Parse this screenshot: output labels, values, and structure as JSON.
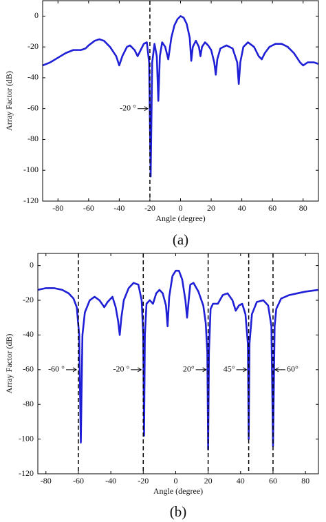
{
  "chart_data": [
    {
      "type": "line",
      "xlabel": "Angle (degree)",
      "ylabel": "Array Factor (dB)",
      "caption": "(a)",
      "xlim": [
        -90,
        90
      ],
      "ylim": [
        -120,
        10
      ],
      "xticks": [
        -80,
        -60,
        -40,
        -20,
        0,
        20,
        40,
        60,
        80
      ],
      "yticks": [
        0,
        -20,
        -40,
        -60,
        -80,
        -100,
        -120
      ],
      "color": "#1f1fd6",
      "x": [
        -90,
        -85,
        -80,
        -75,
        -70,
        -65,
        -62,
        -60,
        -56,
        -53,
        -50,
        -46,
        -42,
        -40,
        -38,
        -35,
        -33,
        -30,
        -28,
        -26,
        -24,
        -22,
        -20.5,
        -19.5,
        -18.5,
        -17,
        -15.5,
        -14.5,
        -13.5,
        -12,
        -10,
        -8,
        -6,
        -4,
        -2,
        0,
        2,
        4,
        6,
        7,
        8,
        10,
        12,
        13,
        14,
        16,
        18,
        20,
        22,
        23,
        24,
        26,
        30,
        34,
        37,
        38,
        39,
        41,
        44,
        48,
        51,
        53,
        55,
        58,
        62,
        66,
        70,
        74,
        78,
        80,
        83,
        87,
        90
      ],
      "values": [
        -32,
        -30,
        -27,
        -24,
        -22,
        -22,
        -21,
        -19,
        -16,
        -15,
        -16,
        -20,
        -26,
        -32,
        -26,
        -20,
        -19,
        -22,
        -26,
        -22,
        -18,
        -17,
        -30,
        -104,
        -30,
        -18,
        -26,
        -55,
        -26,
        -17,
        -20,
        -28,
        -14,
        -6,
        -2,
        0,
        -1,
        -5,
        -14,
        -29,
        -20,
        -16,
        -20,
        -26,
        -20,
        -17,
        -19,
        -22,
        -30,
        -38,
        -28,
        -21,
        -19,
        -21,
        -30,
        -44,
        -30,
        -20,
        -17,
        -20,
        -26,
        -28,
        -24,
        -20,
        -18,
        -18,
        -20,
        -24,
        -30,
        -32,
        -30,
        -30,
        -31
      ],
      "annotations": [
        {
          "text": "-20 °",
          "x": -20,
          "side": "left"
        }
      ]
    },
    {
      "type": "line",
      "xlabel": "Angle (degree)",
      "ylabel": "Array Factor (dB)",
      "caption": "(b)",
      "xlim": [
        -85,
        88
      ],
      "ylim": [
        -120,
        7
      ],
      "xticks": [
        -80,
        -60,
        -40,
        -20,
        0,
        20,
        40,
        60,
        80
      ],
      "yticks": [
        0,
        -20,
        -40,
        -60,
        -80,
        -100,
        -120
      ],
      "color": "#1f1fd6",
      "x": [
        -85,
        -80,
        -75,
        -70,
        -66,
        -63,
        -61,
        -59.5,
        -58.5,
        -57.5,
        -56,
        -53,
        -50,
        -47,
        -44,
        -42,
        -39,
        -37,
        -35.5,
        -34.5,
        -33.5,
        -32,
        -29,
        -26,
        -23,
        -21,
        -20,
        -19.5,
        -19,
        -18,
        -16,
        -14,
        -12,
        -10,
        -8,
        -6,
        -5,
        -4,
        -2,
        0,
        2,
        4,
        6,
        7,
        8,
        9,
        11,
        14,
        17,
        18.5,
        19.5,
        20,
        20.5,
        21.5,
        23,
        26,
        29,
        32,
        35,
        37,
        39,
        41,
        43,
        44.5,
        45,
        45.5,
        47,
        50,
        54,
        57,
        59,
        60,
        61,
        62,
        65,
        70,
        75,
        80,
        88
      ],
      "values": [
        -14,
        -13,
        -13,
        -14,
        -16,
        -19,
        -24,
        -40,
        -102,
        -40,
        -27,
        -20,
        -18,
        -20,
        -24,
        -21,
        -18,
        -24,
        -32,
        -40,
        -30,
        -20,
        -13,
        -10,
        -11,
        -20,
        -40,
        -98,
        -40,
        -22,
        -20,
        -22,
        -16,
        -14,
        -16,
        -23,
        -35,
        -18,
        -6,
        -3,
        -3,
        -8,
        -20,
        -30,
        -20,
        -11,
        -10,
        -15,
        -23,
        -33,
        -50,
        -106,
        -50,
        -25,
        -22,
        -22,
        -17,
        -16,
        -20,
        -26,
        -23,
        -22,
        -28,
        -45,
        -100,
        -45,
        -28,
        -21,
        -20,
        -23,
        -35,
        -104,
        -35,
        -25,
        -19,
        -17,
        -16,
        -15,
        -14
      ],
      "annotations": [
        {
          "text": "-60 °",
          "x": -60,
          "side": "left"
        },
        {
          "text": "-20 °",
          "x": -20,
          "side": "left"
        },
        {
          "text": "20°",
          "x": 20,
          "side": "left"
        },
        {
          "text": "45°",
          "x": 45,
          "side": "left"
        },
        {
          "text": "60°",
          "x": 60,
          "side": "right"
        }
      ]
    }
  ]
}
